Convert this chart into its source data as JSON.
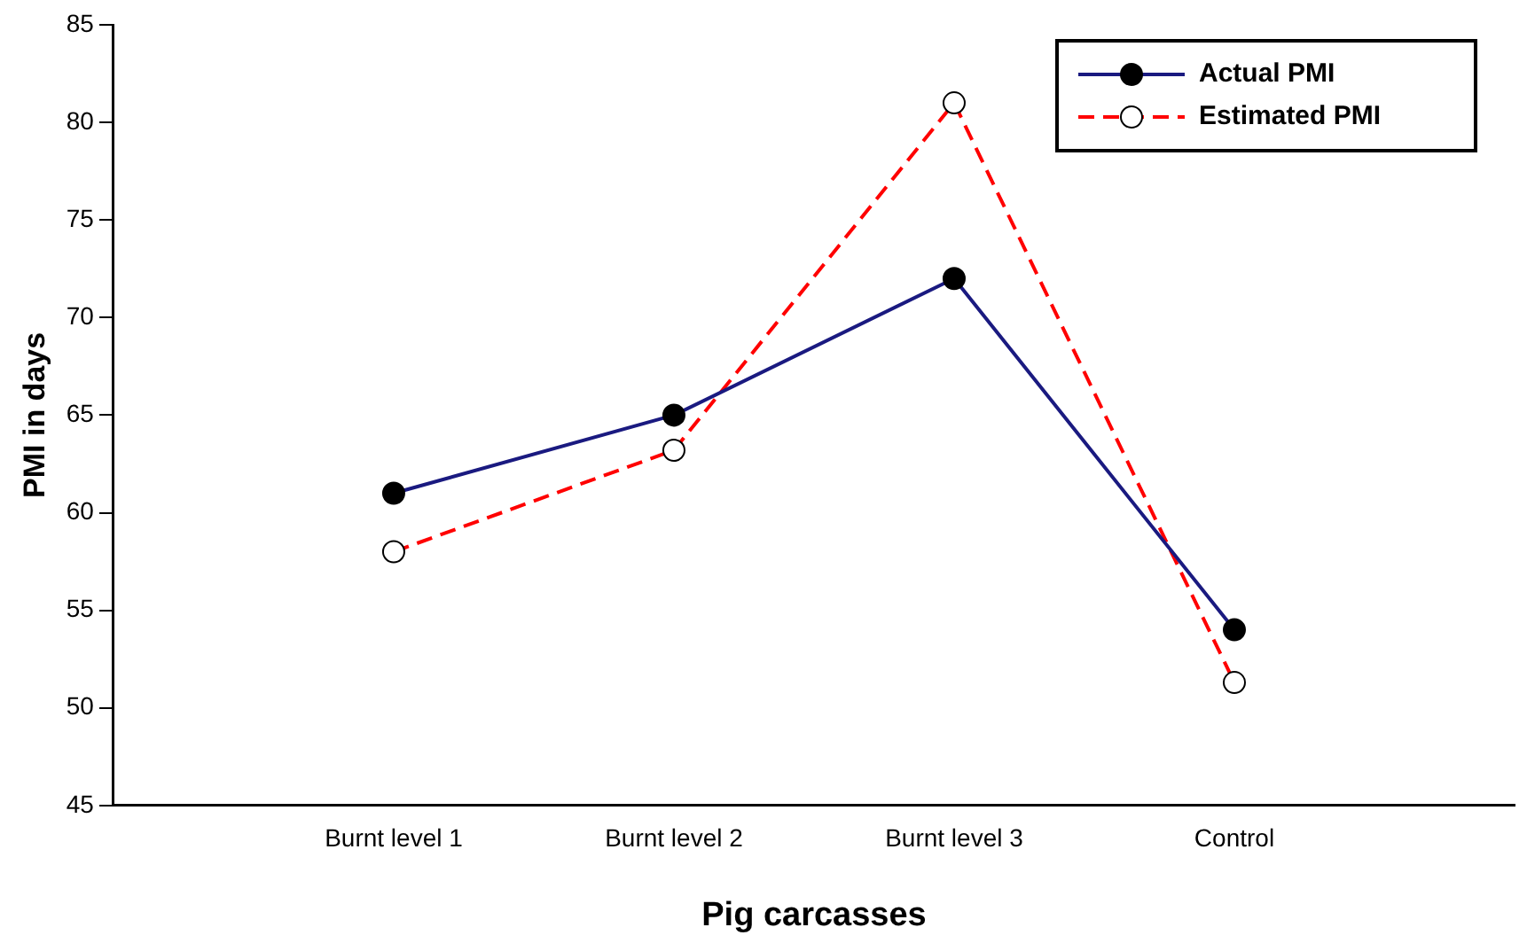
{
  "chart_data": {
    "type": "line",
    "xlabel": "Pig carcasses",
    "ylabel": "PMI in days",
    "categories": [
      "Burnt level 1",
      "Burnt level 2",
      "Burnt level 3",
      "Control"
    ],
    "series": [
      {
        "name": "Actual PMI",
        "color": "#1a1a80",
        "values": [
          61,
          65,
          72,
          54
        ],
        "line_style": "solid"
      },
      {
        "name": "Estimated PMI",
        "color": "#ff0000",
        "values": [
          58,
          63.2,
          81,
          51.3
        ],
        "line_style": "dashed"
      }
    ],
    "ylim": [
      45,
      85
    ],
    "yticks": [
      45,
      50,
      55,
      60,
      65,
      70,
      75,
      80,
      85
    ],
    "grid": false,
    "legend": "top right",
    "marker": "circle"
  }
}
